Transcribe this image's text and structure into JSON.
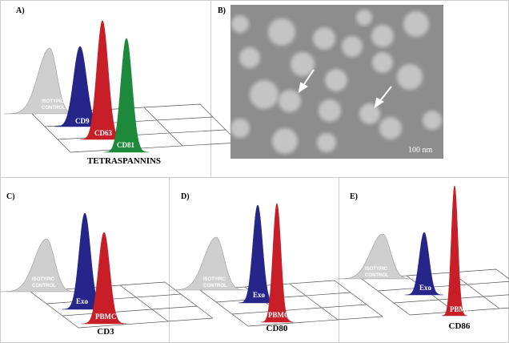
{
  "panels": [
    {
      "label": "A)",
      "control": [
        "ISOTYPIC",
        "CONTROL"
      ],
      "peak_labels": [
        "CD9",
        "CD63",
        "CD81"
      ],
      "caption": "TETRASPANNINS"
    },
    {
      "label": "B)",
      "scale_bar": "100 nm"
    },
    {
      "label": "C)",
      "control": [
        "ISOTYPIC",
        "CONTROL"
      ],
      "peak_labels": [
        "Exo",
        "PBMC"
      ],
      "caption": "CD3"
    },
    {
      "label": "D)",
      "control": [
        "ISOTYPIC",
        "CONTROL"
      ],
      "peak_labels": [
        "Exo",
        "PBMC"
      ],
      "caption": "CD80"
    },
    {
      "label": "E)",
      "control": [
        "ISOTYPIC",
        "CONTROL"
      ],
      "peak_labels": [
        "Exo",
        "PBMC"
      ],
      "caption": "CD86"
    }
  ]
}
